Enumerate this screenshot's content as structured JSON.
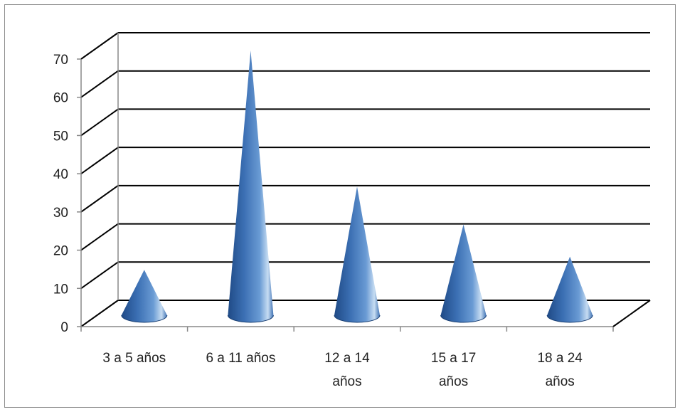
{
  "chart_data": {
    "type": "bar",
    "style": "3d-cone",
    "categories": [
      "3 a 5 años",
      "6 a 11 años",
      "12 a 14 años",
      "15 a 17 años",
      "18 a 24 años"
    ],
    "category_lines": [
      [
        "3 a 5 años"
      ],
      [
        "6 a 11 años"
      ],
      [
        "12 a 14",
        "años"
      ],
      [
        "15 a 17",
        "años"
      ],
      [
        "18 a 24",
        "años"
      ]
    ],
    "values": [
      12,
      70,
      34,
      24,
      15.5
    ],
    "ylim": [
      0,
      70
    ],
    "yticks": [
      0,
      10,
      20,
      30,
      40,
      50,
      60,
      70
    ],
    "grid": true,
    "legend": "none",
    "colors": {
      "cone_dark": "#1f4a86",
      "cone_mid": "#4f86c6",
      "cone_light": "#c6dcf2",
      "grid": "#000000"
    }
  }
}
